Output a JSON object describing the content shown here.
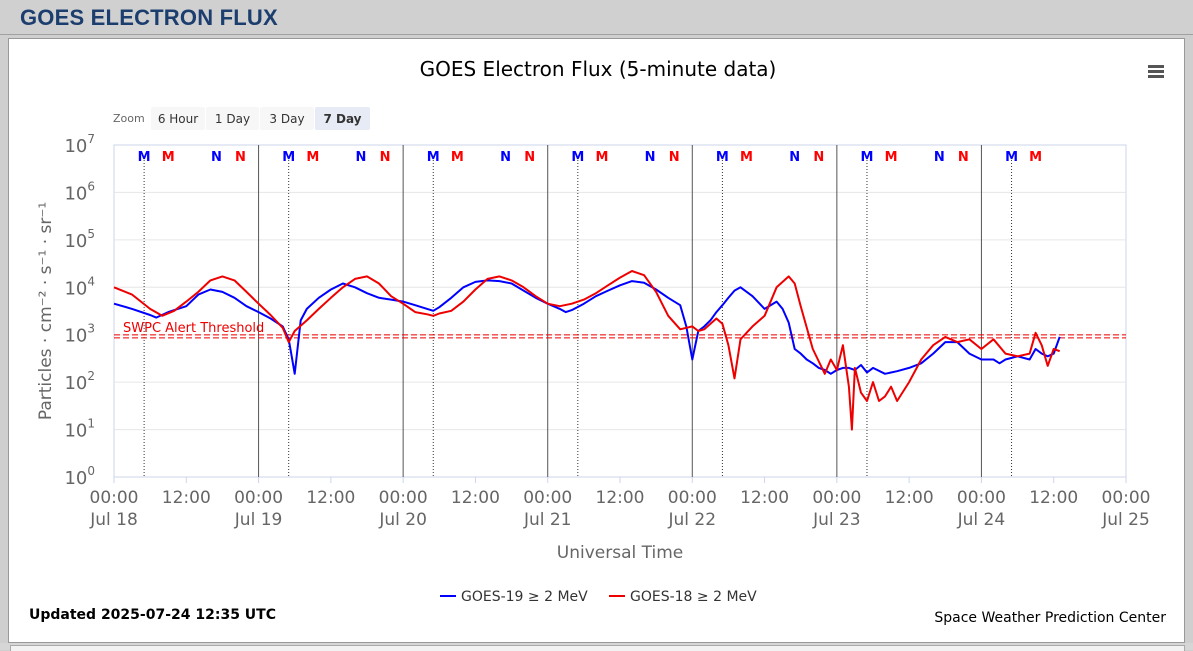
{
  "header": {
    "title": "GOES ELECTRON FLUX"
  },
  "chart": {
    "title": "GOES Electron Flux (5-minute data)",
    "zoom_label": "Zoom",
    "zoom_buttons": [
      {
        "label": "6 Hour",
        "active": false
      },
      {
        "label": "1 Day",
        "active": false
      },
      {
        "label": "3 Day",
        "active": false
      },
      {
        "label": "7 Day",
        "active": true
      }
    ],
    "updated": "Updated 2025-07-24 12:35 UTC",
    "credit": "Space Weather Prediction Center",
    "threshold_label": "SWPC Alert Threshold"
  },
  "chart_data": {
    "type": "line",
    "title": "GOES Electron Flux (5-minute data)",
    "xlabel": "Universal Time",
    "ylabel": "Particles · cm⁻² · s⁻¹ · sr⁻¹",
    "y_scale": "log",
    "ylim": [
      1,
      10000000
    ],
    "y_ticks": [
      {
        "base": "10",
        "exp": "0"
      },
      {
        "base": "10",
        "exp": "1"
      },
      {
        "base": "10",
        "exp": "2"
      },
      {
        "base": "10",
        "exp": "3"
      },
      {
        "base": "10",
        "exp": "4"
      },
      {
        "base": "10",
        "exp": "5"
      },
      {
        "base": "10",
        "exp": "6"
      },
      {
        "base": "10",
        "exp": "7"
      }
    ],
    "xlim_hours": [
      0,
      168
    ],
    "x_ticks": [
      {
        "h": 0,
        "time": "00:00",
        "date": "Jul 18"
      },
      {
        "h": 12,
        "time": "12:00",
        "date": ""
      },
      {
        "h": 24,
        "time": "00:00",
        "date": "Jul 19"
      },
      {
        "h": 36,
        "time": "12:00",
        "date": ""
      },
      {
        "h": 48,
        "time": "00:00",
        "date": "Jul 20"
      },
      {
        "h": 60,
        "time": "12:00",
        "date": ""
      },
      {
        "h": 72,
        "time": "00:00",
        "date": "Jul 21"
      },
      {
        "h": 84,
        "time": "12:00",
        "date": ""
      },
      {
        "h": 96,
        "time": "00:00",
        "date": "Jul 22"
      },
      {
        "h": 108,
        "time": "12:00",
        "date": ""
      },
      {
        "h": 120,
        "time": "00:00",
        "date": "Jul 23"
      },
      {
        "h": 132,
        "time": "12:00",
        "date": ""
      },
      {
        "h": 144,
        "time": "00:00",
        "date": "Jul 24"
      },
      {
        "h": 156,
        "time": "12:00",
        "date": ""
      },
      {
        "h": 168,
        "time": "00:00",
        "date": "Jul 25"
      }
    ],
    "threshold": 900,
    "markers": [
      {
        "h": 5,
        "label": "M",
        "color": "#0000ff",
        "line": true
      },
      {
        "h": 9,
        "label": "M",
        "color": "#ff0000",
        "line": false
      },
      {
        "h": 17,
        "label": "N",
        "color": "#0000ff",
        "line": false
      },
      {
        "h": 21,
        "label": "N",
        "color": "#ff0000",
        "line": false
      },
      {
        "h": 29,
        "label": "M",
        "color": "#0000ff",
        "line": true
      },
      {
        "h": 33,
        "label": "M",
        "color": "#ff0000",
        "line": false
      },
      {
        "h": 41,
        "label": "N",
        "color": "#0000ff",
        "line": false
      },
      {
        "h": 45,
        "label": "N",
        "color": "#ff0000",
        "line": false
      },
      {
        "h": 53,
        "label": "M",
        "color": "#0000ff",
        "line": true
      },
      {
        "h": 57,
        "label": "M",
        "color": "#ff0000",
        "line": false
      },
      {
        "h": 65,
        "label": "N",
        "color": "#0000ff",
        "line": false
      },
      {
        "h": 69,
        "label": "N",
        "color": "#ff0000",
        "line": false
      },
      {
        "h": 77,
        "label": "M",
        "color": "#0000ff",
        "line": true
      },
      {
        "h": 81,
        "label": "M",
        "color": "#ff0000",
        "line": false
      },
      {
        "h": 89,
        "label": "N",
        "color": "#0000ff",
        "line": false
      },
      {
        "h": 93,
        "label": "N",
        "color": "#ff0000",
        "line": false
      },
      {
        "h": 101,
        "label": "M",
        "color": "#0000ff",
        "line": true
      },
      {
        "h": 105,
        "label": "M",
        "color": "#ff0000",
        "line": false
      },
      {
        "h": 113,
        "label": "N",
        "color": "#0000ff",
        "line": false
      },
      {
        "h": 117,
        "label": "N",
        "color": "#ff0000",
        "line": false
      },
      {
        "h": 125,
        "label": "M",
        "color": "#0000ff",
        "line": true
      },
      {
        "h": 129,
        "label": "M",
        "color": "#ff0000",
        "line": false
      },
      {
        "h": 137,
        "label": "N",
        "color": "#0000ff",
        "line": false
      },
      {
        "h": 141,
        "label": "N",
        "color": "#ff0000",
        "line": false
      },
      {
        "h": 149,
        "label": "M",
        "color": "#0000ff",
        "line": true
      },
      {
        "h": 153,
        "label": "M",
        "color": "#ff0000",
        "line": false
      }
    ],
    "series": [
      {
        "name": "GOES-19 ≥ 2 MeV",
        "color": "#0000ff",
        "x": [
          0,
          3,
          6,
          7,
          9,
          12,
          14,
          16,
          18,
          20,
          22,
          24,
          26,
          28,
          29,
          29.5,
          30,
          31,
          32,
          34,
          36,
          38,
          40,
          42,
          44,
          46,
          48,
          50,
          52,
          53,
          54,
          56,
          58,
          60,
          62,
          64,
          66,
          68,
          70,
          72,
          74,
          75,
          76,
          78,
          80,
          82,
          84,
          86,
          88,
          90,
          92,
          94,
          95,
          96,
          97,
          98,
          99,
          100,
          101,
          102,
          103,
          104,
          106,
          108,
          110,
          111,
          112,
          113,
          114,
          115,
          116,
          117,
          118,
          119,
          120,
          121,
          122,
          123,
          124,
          125,
          126,
          128,
          130,
          132,
          134,
          136,
          138,
          140,
          142,
          144,
          146,
          147,
          148,
          150,
          152,
          153,
          154,
          155,
          156,
          157
        ],
        "y": [
          4500,
          3500,
          2600,
          2300,
          3000,
          4000,
          7000,
          9000,
          8000,
          6000,
          4000,
          3000,
          2200,
          1500,
          800,
          350,
          150,
          2000,
          3500,
          6000,
          9000,
          12000,
          10000,
          7500,
          6000,
          5500,
          5000,
          4200,
          3500,
          3200,
          3800,
          6000,
          10000,
          13000,
          14000,
          13500,
          12000,
          8500,
          6000,
          4500,
          3500,
          3000,
          3300,
          4500,
          6500,
          8500,
          11000,
          13500,
          12500,
          9000,
          6000,
          4200,
          1500,
          300,
          1200,
          1500,
          2000,
          3000,
          4200,
          6000,
          8500,
          10000,
          6500,
          3500,
          5000,
          3500,
          1800,
          500,
          400,
          300,
          250,
          200,
          180,
          150,
          180,
          200,
          200,
          180,
          230,
          160,
          200,
          150,
          170,
          200,
          250,
          400,
          700,
          700,
          400,
          300,
          300,
          250,
          300,
          350,
          300,
          500,
          400,
          350,
          400,
          900
        ]
      },
      {
        "name": "GOES-18 ≥ 2 MeV",
        "color": "#ee0000",
        "x": [
          0,
          3,
          6,
          8,
          10,
          12,
          14,
          16,
          18,
          20,
          22,
          24,
          26,
          28,
          29,
          30,
          32,
          34,
          36,
          38,
          40,
          42,
          44,
          46,
          48,
          50,
          52,
          53,
          54,
          56,
          58,
          60,
          62,
          64,
          66,
          68,
          70,
          72,
          74,
          76,
          78,
          80,
          82,
          84,
          86,
          88,
          90,
          92,
          94,
          96,
          97,
          98,
          100,
          101,
          102,
          103,
          104,
          106,
          108,
          110,
          112,
          113,
          114,
          116,
          118,
          119,
          120,
          121,
          122,
          122.5,
          123,
          124,
          125,
          126,
          127,
          128,
          129,
          130,
          132,
          134,
          136,
          138,
          140,
          142,
          144,
          146,
          148,
          150,
          152,
          153,
          154,
          155,
          156,
          157
        ],
        "y": [
          10000,
          7000,
          3500,
          2500,
          3200,
          5000,
          8000,
          14000,
          17000,
          14000,
          8000,
          4500,
          2600,
          1400,
          700,
          1200,
          2000,
          3500,
          6000,
          10000,
          15000,
          17000,
          12000,
          6500,
          4500,
          3000,
          2700,
          2500,
          2800,
          3200,
          5000,
          9000,
          15000,
          17000,
          14000,
          10000,
          6500,
          4500,
          4000,
          4500,
          5500,
          7500,
          11000,
          16000,
          22000,
          18000,
          8000,
          2500,
          1300,
          1500,
          1200,
          1300,
          2200,
          1700,
          600,
          120,
          800,
          1500,
          2500,
          10000,
          17000,
          12000,
          4000,
          500,
          150,
          300,
          180,
          600,
          80,
          10,
          200,
          60,
          40,
          100,
          40,
          50,
          80,
          40,
          100,
          300,
          600,
          900,
          700,
          800,
          500,
          800,
          400,
          350,
          400,
          1100,
          600,
          220,
          500,
          450
        ]
      }
    ]
  }
}
